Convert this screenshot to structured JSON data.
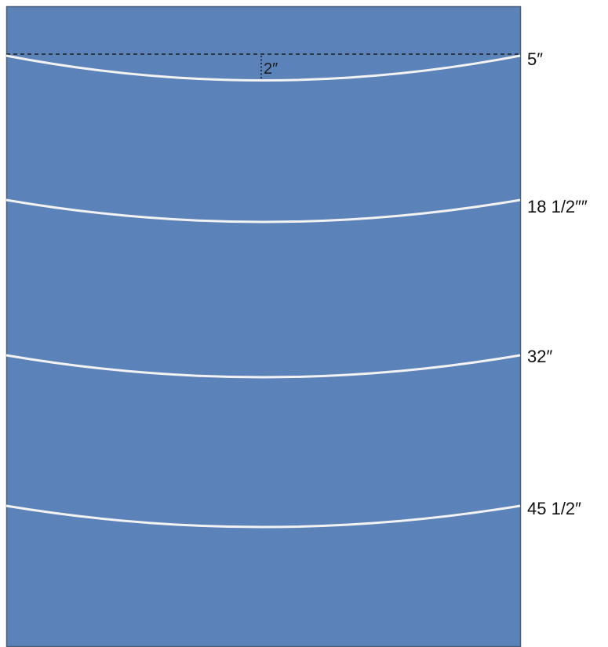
{
  "colors": {
    "panel": "#5b82b9",
    "panel_border": "#4a5d78",
    "curve": "#f2f2f2",
    "guide": "#1f1f1f"
  },
  "curves": [
    {
      "name": "curve-1",
      "label": "5″"
    },
    {
      "name": "curve-2",
      "label": "18 1/2″″"
    },
    {
      "name": "curve-3",
      "label": "32″"
    },
    {
      "name": "curve-4",
      "label": "45 1/2″"
    }
  ],
  "depth": {
    "label": "2″"
  }
}
